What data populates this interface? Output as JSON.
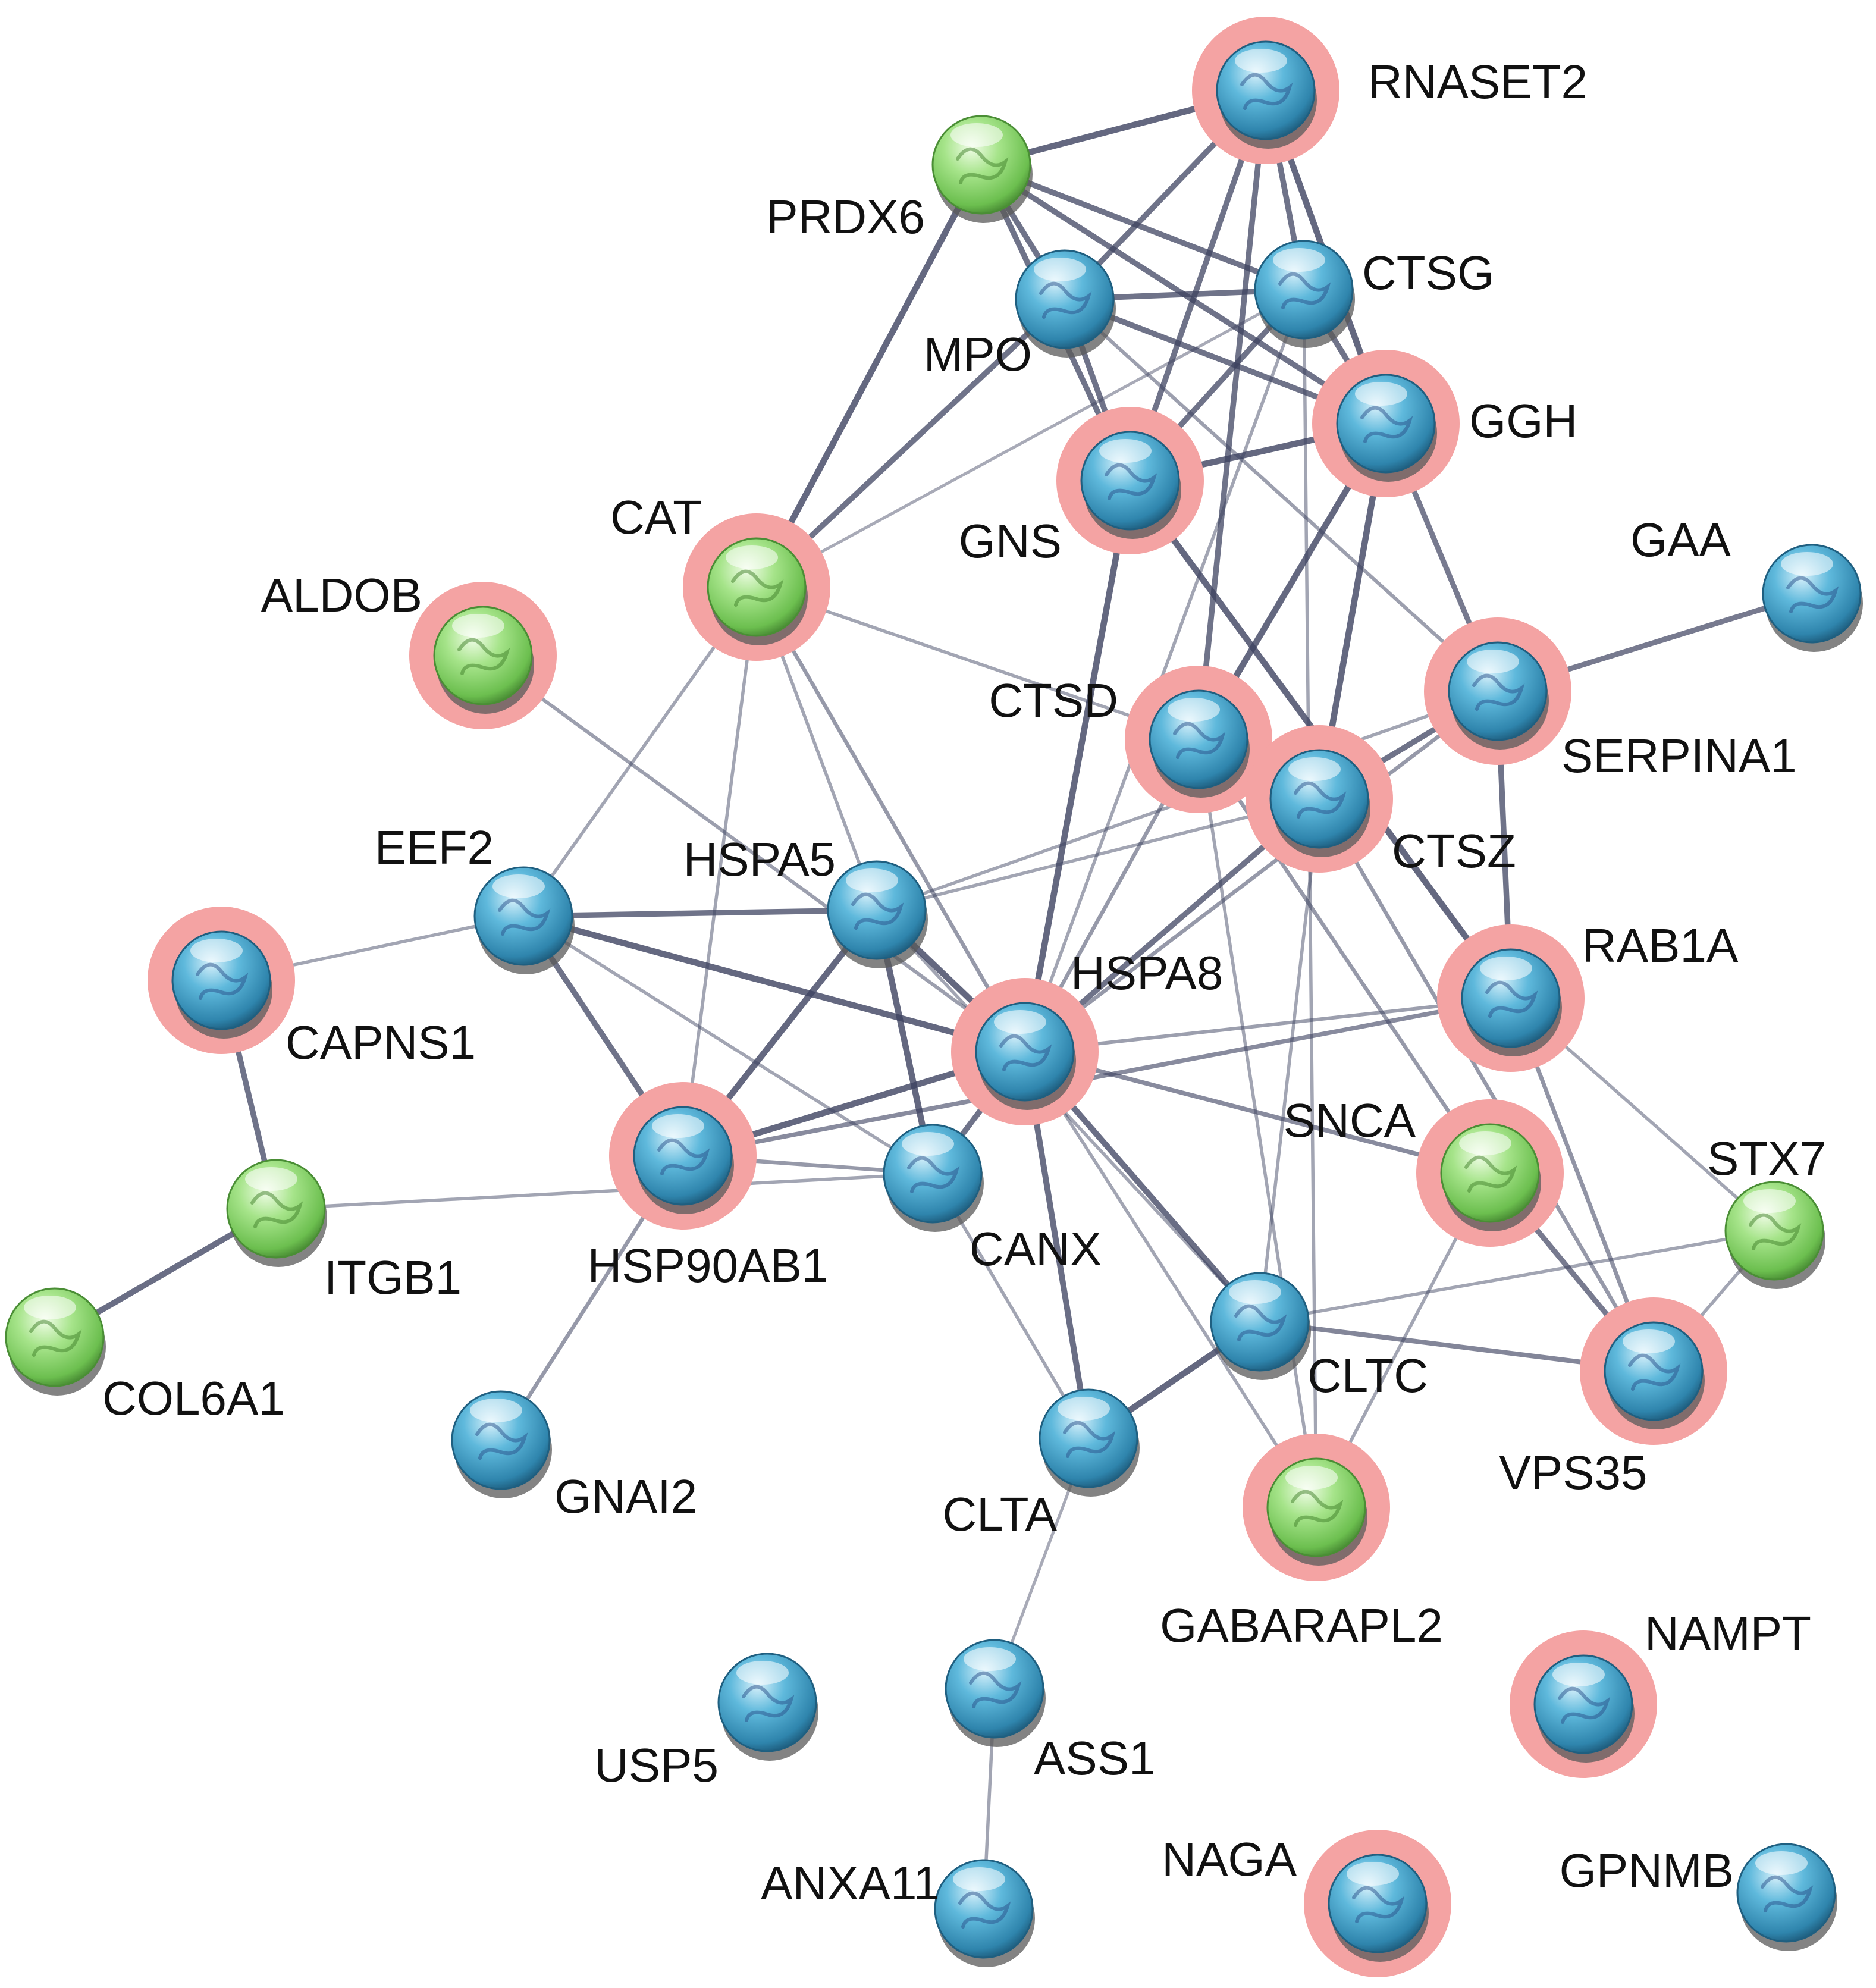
{
  "colors": {
    "blue_node": "#3a9fc6",
    "green_node": "#8fd96f",
    "halo": "#f4a3a3",
    "edge": "#3d4260"
  },
  "nodes": [
    {
      "id": "RNASET2",
      "name": "RNASET2",
      "color": "blue",
      "halo": true
    },
    {
      "id": "PRDX6",
      "name": "PRDX6",
      "color": "green",
      "halo": false
    },
    {
      "id": "CTSG",
      "name": "CTSG",
      "color": "blue",
      "halo": false
    },
    {
      "id": "MPO",
      "name": "MPO",
      "color": "blue",
      "halo": false
    },
    {
      "id": "GGH",
      "name": "GGH",
      "color": "blue",
      "halo": true
    },
    {
      "id": "GNS",
      "name": "GNS",
      "color": "blue",
      "halo": true
    },
    {
      "id": "CAT",
      "name": "CAT",
      "color": "green",
      "halo": true
    },
    {
      "id": "ALDOB",
      "name": "ALDOB",
      "color": "green",
      "halo": true
    },
    {
      "id": "GAA",
      "name": "GAA",
      "color": "blue",
      "halo": false
    },
    {
      "id": "CTSD",
      "name": "CTSD",
      "color": "blue",
      "halo": true
    },
    {
      "id": "SERPINA1",
      "name": "SERPINA1",
      "color": "blue",
      "halo": true
    },
    {
      "id": "CTSZ",
      "name": "CTSZ",
      "color": "blue",
      "halo": true
    },
    {
      "id": "EEF2",
      "name": "EEF2",
      "color": "blue",
      "halo": false
    },
    {
      "id": "HSPA5",
      "name": "HSPA5",
      "color": "blue",
      "halo": false
    },
    {
      "id": "CAPNS1",
      "name": "CAPNS1",
      "color": "blue",
      "halo": true
    },
    {
      "id": "HSPA8",
      "name": "HSPA8",
      "color": "blue",
      "halo": true
    },
    {
      "id": "RAB1A",
      "name": "RAB1A",
      "color": "blue",
      "halo": true
    },
    {
      "id": "SNCA",
      "name": "SNCA",
      "color": "green",
      "halo": true
    },
    {
      "id": "HSP90AB1",
      "name": "HSP90AB1",
      "color": "blue",
      "halo": true
    },
    {
      "id": "CANX",
      "name": "CANX",
      "color": "blue",
      "halo": false
    },
    {
      "id": "ITGB1",
      "name": "ITGB1",
      "color": "green",
      "halo": false
    },
    {
      "id": "STX7",
      "name": "STX7",
      "color": "green",
      "halo": false
    },
    {
      "id": "COL6A1",
      "name": "COL6A1",
      "color": "green",
      "halo": false
    },
    {
      "id": "CLTC",
      "name": "CLTC",
      "color": "blue",
      "halo": false
    },
    {
      "id": "VPS35",
      "name": "VPS35",
      "color": "blue",
      "halo": true
    },
    {
      "id": "GNAI2",
      "name": "GNAI2",
      "color": "blue",
      "halo": false
    },
    {
      "id": "CLTA",
      "name": "CLTA",
      "color": "blue",
      "halo": false
    },
    {
      "id": "GABARAPL2",
      "name": "GABARAPL2",
      "color": "green",
      "halo": true
    },
    {
      "id": "NAMPT",
      "name": "NAMPT",
      "color": "blue",
      "halo": true
    },
    {
      "id": "USP5",
      "name": "USP5",
      "color": "blue",
      "halo": false
    },
    {
      "id": "ASS1",
      "name": "ASS1",
      "color": "blue",
      "halo": false
    },
    {
      "id": "ANXA11",
      "name": "ANXA11",
      "color": "blue",
      "halo": false
    },
    {
      "id": "NAGA",
      "name": "NAGA",
      "color": "blue",
      "halo": true
    },
    {
      "id": "GPNMB",
      "name": "GPNMB",
      "color": "blue",
      "halo": false
    }
  ],
  "edges": [
    [
      "PRDX6",
      "RNASET2",
      0.85
    ],
    [
      "PRDX6",
      "MPO",
      0.75
    ],
    [
      "PRDX6",
      "CTSG",
      0.75
    ],
    [
      "PRDX6",
      "GGH",
      0.75
    ],
    [
      "PRDX6",
      "GNS",
      0.75
    ],
    [
      "PRDX6",
      "CAT",
      0.85
    ],
    [
      "MPO",
      "RNASET2",
      0.75
    ],
    [
      "MPO",
      "CTSG",
      0.75
    ],
    [
      "MPO",
      "GGH",
      0.75
    ],
    [
      "MPO",
      "GNS",
      0.75
    ],
    [
      "MPO",
      "CAT",
      0.75
    ],
    [
      "RNASET2",
      "CTSG",
      0.75
    ],
    [
      "RNASET2",
      "GGH",
      0.85
    ],
    [
      "RNASET2",
      "GNS",
      0.75
    ],
    [
      "RNASET2",
      "CTSD",
      0.75
    ],
    [
      "CTSG",
      "GGH",
      0.75
    ],
    [
      "CTSG",
      "GNS",
      0.75
    ],
    [
      "GGH",
      "GNS",
      0.85
    ],
    [
      "GGH",
      "CTSD",
      0.85
    ],
    [
      "GGH",
      "CTSZ",
      0.85
    ],
    [
      "GGH",
      "SERPINA1",
      0.7
    ],
    [
      "GNS",
      "HSPA8",
      0.85
    ],
    [
      "GNS",
      "RAB1A",
      0.85
    ],
    [
      "CTSD",
      "CTSZ",
      0.85
    ],
    [
      "CTSD",
      "HSPA8",
      0.45
    ],
    [
      "CTSD",
      "GABARAPL2",
      0.35
    ],
    [
      "CTSD",
      "SNCA",
      0.45
    ],
    [
      "CTSZ",
      "SERPINA1",
      0.75
    ],
    [
      "CTSZ",
      "HSPA8",
      0.75
    ],
    [
      "CTSZ",
      "HSPA5",
      0.35
    ],
    [
      "SERPINA1",
      "GAA",
      0.7
    ],
    [
      "SERPINA1",
      "RAB1A",
      0.75
    ],
    [
      "SERPINA1",
      "HSPA8",
      0.45
    ],
    [
      "SERPINA1",
      "MPO",
      0.4
    ],
    [
      "SERPINA1",
      "HSPA5",
      0.35
    ],
    [
      "CAT",
      "CTSD",
      0.35
    ],
    [
      "CAT",
      "CTSG",
      0.3
    ],
    [
      "CAT",
      "HSPA8",
      0.45
    ],
    [
      "CAT",
      "HSPA5",
      0.35
    ],
    [
      "CAT",
      "EEF2",
      0.35
    ],
    [
      "CAT",
      "HSP90AB1",
      0.35
    ],
    [
      "ALDOB",
      "HSPA8",
      0.4
    ],
    [
      "CAPNS1",
      "EEF2",
      0.35
    ],
    [
      "CAPNS1",
      "ITGB1",
      0.75
    ],
    [
      "ITGB1",
      "COL6A1",
      0.8
    ],
    [
      "ITGB1",
      "CANX",
      0.35
    ],
    [
      "EEF2",
      "HSPA5",
      0.75
    ],
    [
      "EEF2",
      "HSPA8",
      0.85
    ],
    [
      "EEF2",
      "HSP90AB1",
      0.75
    ],
    [
      "EEF2",
      "CANX",
      0.35
    ],
    [
      "HSPA5",
      "HSPA8",
      0.85
    ],
    [
      "HSPA5",
      "HSP90AB1",
      0.85
    ],
    [
      "HSPA5",
      "CANX",
      0.85
    ],
    [
      "HSPA5",
      "CLTC",
      0.35
    ],
    [
      "HSPA8",
      "HSP90AB1",
      0.85
    ],
    [
      "HSPA8",
      "CANX",
      0.75
    ],
    [
      "HSPA8",
      "CLTC",
      0.8
    ],
    [
      "HSPA8",
      "CLTA",
      0.8
    ],
    [
      "HSPA8",
      "RAB1A",
      0.4
    ],
    [
      "HSPA8",
      "SNCA",
      0.55
    ],
    [
      "HSPA8",
      "GABARAPL2",
      0.35
    ],
    [
      "HSPA8",
      "CTSG",
      0.35
    ],
    [
      "HSP90AB1",
      "CANX",
      0.45
    ],
    [
      "HSP90AB1",
      "RAB1A",
      0.55
    ],
    [
      "HSP90AB1",
      "GNAI2",
      0.45
    ],
    [
      "CANX",
      "CLTA",
      0.35
    ],
    [
      "CLTC",
      "CLTA",
      0.85
    ],
    [
      "CLTC",
      "VPS35",
      0.6
    ],
    [
      "CLTC",
      "STX7",
      0.35
    ],
    [
      "CLTC",
      "CTSZ",
      0.35
    ],
    [
      "RAB1A",
      "VPS35",
      0.5
    ],
    [
      "RAB1A",
      "STX7",
      0.35
    ],
    [
      "SNCA",
      "VPS35",
      0.7
    ],
    [
      "SNCA",
      "GABARAPL2",
      0.35
    ],
    [
      "CTSZ",
      "VPS35",
      0.45
    ],
    [
      "STX7",
      "VPS35",
      0.35
    ],
    [
      "CTSG",
      "GABARAPL2",
      0.35
    ],
    [
      "ASS1",
      "CLTA",
      0.3
    ],
    [
      "ASS1",
      "ANXA11",
      0.35
    ]
  ]
}
